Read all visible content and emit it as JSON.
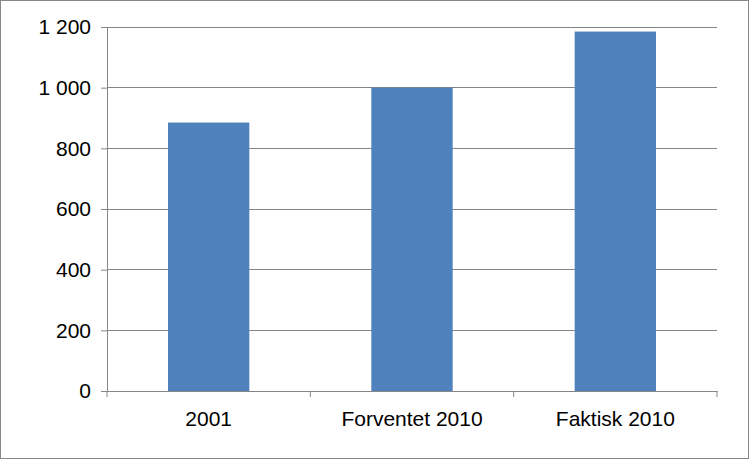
{
  "chart_data": {
    "type": "bar",
    "categories": [
      "2001",
      "Forventet 2010",
      "Faktisk 2010"
    ],
    "values": [
      885,
      1000,
      1185
    ],
    "color": "#4f81bd",
    "ylim": [
      0,
      1200
    ],
    "yticks": [
      0,
      200,
      400,
      600,
      800,
      {
        "value": 1000,
        "label": "1 000"
      },
      {
        "value": 1200,
        "label": "1 200"
      }
    ],
    "grid": true
  }
}
